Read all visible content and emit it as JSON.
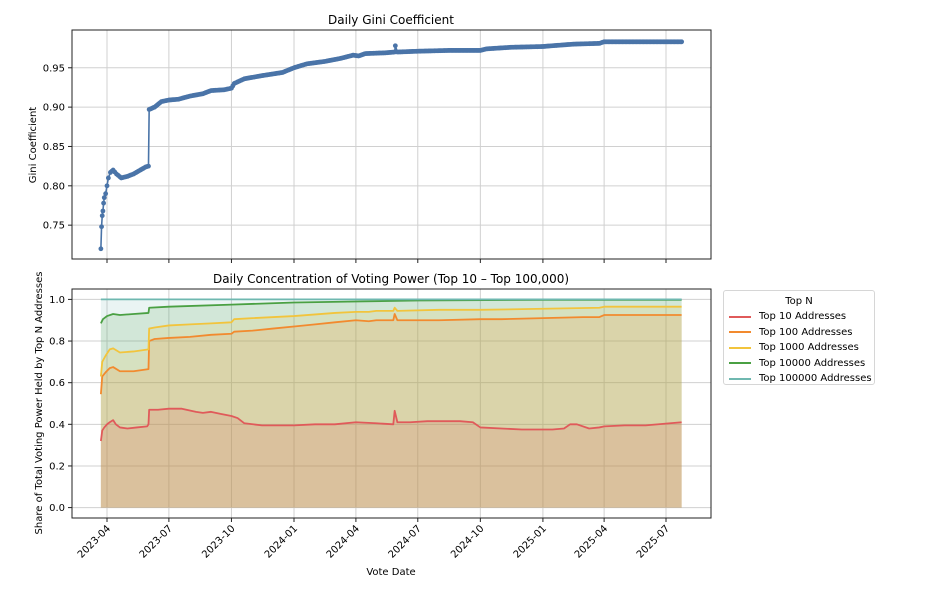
{
  "chart_data": [
    {
      "type": "line",
      "title": "Daily Gini Coefficient",
      "xlabel": "",
      "ylabel": "Gini Coefficient",
      "ylabel_color": "#4a78b0",
      "ylim": [
        0.707,
        0.998
      ],
      "yticks": [
        0.75,
        0.8,
        0.85,
        0.9,
        0.95
      ],
      "ytick_labels": [
        "0.75",
        "0.80",
        "0.85",
        "0.90",
        "0.95"
      ],
      "grid": true,
      "series": [
        {
          "name": "Gini Coefficient",
          "color": "#4a74a8",
          "marker": "circle",
          "x": [
            "2023-03-23",
            "2023-03-24",
            "2023-03-25",
            "2023-03-26",
            "2023-03-27",
            "2023-03-28",
            "2023-03-30",
            "2023-04-01",
            "2023-04-03",
            "2023-04-06",
            "2023-04-10",
            "2023-04-15",
            "2023-04-22",
            "2023-05-01",
            "2023-05-10",
            "2023-05-20",
            "2023-05-28",
            "2023-06-01",
            "2023-06-02",
            "2023-06-10",
            "2023-06-20",
            "2023-07-01",
            "2023-07-15",
            "2023-08-01",
            "2023-08-20",
            "2023-09-01",
            "2023-09-20",
            "2023-10-01",
            "2023-10-05",
            "2023-10-20",
            "2023-11-15",
            "2023-12-15",
            "2024-01-01",
            "2024-01-20",
            "2024-02-15",
            "2024-03-10",
            "2024-03-28",
            "2024-04-05",
            "2024-04-15",
            "2024-05-15",
            "2024-05-28",
            "2024-05-29",
            "2024-06-01",
            "2024-07-01",
            "2024-08-15",
            "2024-10-01",
            "2024-10-10",
            "2024-11-15",
            "2025-01-01",
            "2025-01-15",
            "2025-02-15",
            "2025-03-25",
            "2025-04-01",
            "2025-07-24"
          ],
          "y": [
            0.72,
            0.748,
            0.762,
            0.768,
            0.778,
            0.785,
            0.79,
            0.8,
            0.81,
            0.817,
            0.82,
            0.815,
            0.81,
            0.812,
            0.815,
            0.82,
            0.824,
            0.825,
            0.897,
            0.9,
            0.907,
            0.909,
            0.91,
            0.914,
            0.917,
            0.921,
            0.922,
            0.924,
            0.93,
            0.936,
            0.94,
            0.944,
            0.95,
            0.955,
            0.958,
            0.962,
            0.966,
            0.965,
            0.968,
            0.969,
            0.97,
            0.978,
            0.97,
            0.971,
            0.972,
            0.972,
            0.974,
            0.976,
            0.977,
            0.978,
            0.98,
            0.981,
            0.983,
            0.983
          ]
        }
      ]
    },
    {
      "type": "area",
      "title": "Daily Concentration of Voting Power (Top 10 – Top 100,000)",
      "xlabel": "Vote Date",
      "ylabel": "Share of Total Voting Power Held by Top N Addresses",
      "ylim": [
        -0.05,
        1.05
      ],
      "yticks": [
        0.0,
        0.2,
        0.4,
        0.6,
        0.8,
        1.0
      ],
      "ytick_labels": [
        "0.0",
        "0.2",
        "0.4",
        "0.6",
        "0.8",
        "1.0"
      ],
      "xticks": [
        "2023-04-01",
        "2023-07-01",
        "2023-10-01",
        "2024-01-01",
        "2024-04-01",
        "2024-07-01",
        "2024-10-01",
        "2025-01-01",
        "2025-04-01",
        "2025-07-01"
      ],
      "xtick_labels": [
        "2023-04",
        "2023-07",
        "2023-10",
        "2024-01",
        "2024-04",
        "2024-07",
        "2024-10",
        "2025-01",
        "2025-04",
        "2025-07"
      ],
      "grid": true,
      "legend": {
        "title": "Top N",
        "placement": "outside-right-top"
      },
      "series": [
        {
          "name": "Top 10 Addresses",
          "color": "#e05a5a",
          "x": [
            "2023-03-23",
            "2023-03-25",
            "2023-03-28",
            "2023-04-01",
            "2023-04-05",
            "2023-04-10",
            "2023-04-14",
            "2023-04-20",
            "2023-05-01",
            "2023-05-15",
            "2023-05-30",
            "2023-06-01",
            "2023-06-02",
            "2023-06-15",
            "2023-07-01",
            "2023-07-20",
            "2023-08-10",
            "2023-08-20",
            "2023-09-01",
            "2023-09-15",
            "2023-10-01",
            "2023-10-10",
            "2023-10-20",
            "2023-11-15",
            "2024-01-01",
            "2024-02-01",
            "2024-03-01",
            "2024-04-01",
            "2024-05-01",
            "2024-05-26",
            "2024-05-28",
            "2024-06-01",
            "2024-06-20",
            "2024-07-15",
            "2024-08-01",
            "2024-09-01",
            "2024-09-20",
            "2024-10-01",
            "2024-11-01",
            "2024-12-01",
            "2025-01-01",
            "2025-01-15",
            "2025-02-01",
            "2025-02-10",
            "2025-02-20",
            "2025-03-10",
            "2025-03-25",
            "2025-04-01",
            "2025-05-01",
            "2025-06-01",
            "2025-07-24"
          ],
          "y": [
            0.32,
            0.37,
            0.385,
            0.4,
            0.41,
            0.42,
            0.4,
            0.385,
            0.38,
            0.385,
            0.39,
            0.4,
            0.47,
            0.47,
            0.475,
            0.475,
            0.46,
            0.455,
            0.46,
            0.45,
            0.44,
            0.43,
            0.405,
            0.395,
            0.395,
            0.4,
            0.4,
            0.41,
            0.405,
            0.4,
            0.465,
            0.41,
            0.41,
            0.415,
            0.415,
            0.415,
            0.41,
            0.385,
            0.38,
            0.375,
            0.375,
            0.375,
            0.38,
            0.4,
            0.4,
            0.38,
            0.385,
            0.39,
            0.395,
            0.395,
            0.41
          ]
        },
        {
          "name": "Top 100 Addresses",
          "color": "#f28a2e",
          "x": [
            "2023-03-23",
            "2023-03-25",
            "2023-03-30",
            "2023-04-05",
            "2023-04-10",
            "2023-04-20",
            "2023-05-10",
            "2023-06-01",
            "2023-06-02",
            "2023-06-10",
            "2023-07-01",
            "2023-08-01",
            "2023-09-01",
            "2023-10-01",
            "2023-10-05",
            "2023-11-01",
            "2023-12-01",
            "2024-01-01",
            "2024-02-01",
            "2024-03-01",
            "2024-04-01",
            "2024-04-20",
            "2024-05-01",
            "2024-05-26",
            "2024-05-28",
            "2024-06-01",
            "2024-07-01",
            "2024-08-01",
            "2024-10-01",
            "2024-11-01",
            "2025-01-01",
            "2025-03-01",
            "2025-03-25",
            "2025-04-01",
            "2025-05-01",
            "2025-07-24"
          ],
          "y": [
            0.545,
            0.63,
            0.65,
            0.67,
            0.675,
            0.655,
            0.655,
            0.665,
            0.8,
            0.81,
            0.815,
            0.82,
            0.83,
            0.835,
            0.845,
            0.85,
            0.86,
            0.87,
            0.88,
            0.89,
            0.9,
            0.895,
            0.9,
            0.9,
            0.93,
            0.9,
            0.9,
            0.9,
            0.905,
            0.905,
            0.91,
            0.915,
            0.915,
            0.925,
            0.925,
            0.925
          ]
        },
        {
          "name": "Top 1000 Addresses",
          "color": "#f2c43c",
          "x": [
            "2023-03-23",
            "2023-03-25",
            "2023-03-30",
            "2023-04-05",
            "2023-04-10",
            "2023-04-20",
            "2023-05-10",
            "2023-06-01",
            "2023-06-02",
            "2023-06-10",
            "2023-07-01",
            "2023-08-01",
            "2023-09-01",
            "2023-10-01",
            "2023-10-05",
            "2023-11-01",
            "2024-01-01",
            "2024-03-01",
            "2024-04-01",
            "2024-04-20",
            "2024-05-01",
            "2024-05-26",
            "2024-05-28",
            "2024-06-01",
            "2024-08-01",
            "2024-10-01",
            "2025-01-01",
            "2025-03-25",
            "2025-04-01",
            "2025-07-24"
          ],
          "y": [
            0.63,
            0.7,
            0.73,
            0.76,
            0.765,
            0.745,
            0.75,
            0.76,
            0.86,
            0.865,
            0.875,
            0.88,
            0.885,
            0.89,
            0.905,
            0.91,
            0.92,
            0.935,
            0.94,
            0.94,
            0.945,
            0.945,
            0.96,
            0.945,
            0.95,
            0.95,
            0.955,
            0.96,
            0.965,
            0.965
          ]
        },
        {
          "name": "Top 10000 Addresses",
          "color": "#4aa043",
          "x": [
            "2023-03-23",
            "2023-03-26",
            "2023-04-01",
            "2023-04-10",
            "2023-04-20",
            "2023-05-10",
            "2023-06-01",
            "2023-06-02",
            "2023-07-01",
            "2023-10-01",
            "2024-01-01",
            "2024-04-01",
            "2024-07-01",
            "2025-01-01",
            "2025-07-24"
          ],
          "y": [
            0.885,
            0.905,
            0.92,
            0.93,
            0.925,
            0.93,
            0.935,
            0.96,
            0.965,
            0.975,
            0.985,
            0.99,
            0.995,
            0.998,
            0.998
          ]
        },
        {
          "name": "Top 100000 Addresses",
          "color": "#6fb8b0",
          "x": [
            "2023-03-23",
            "2025-07-24"
          ],
          "y": [
            1.0,
            1.0
          ]
        }
      ]
    }
  ],
  "legend": {
    "title": "Top N",
    "items": [
      "Top 10 Addresses",
      "Top 100 Addresses",
      "Top 1000 Addresses",
      "Top 10000 Addresses",
      "Top 100000 Addresses"
    ]
  }
}
